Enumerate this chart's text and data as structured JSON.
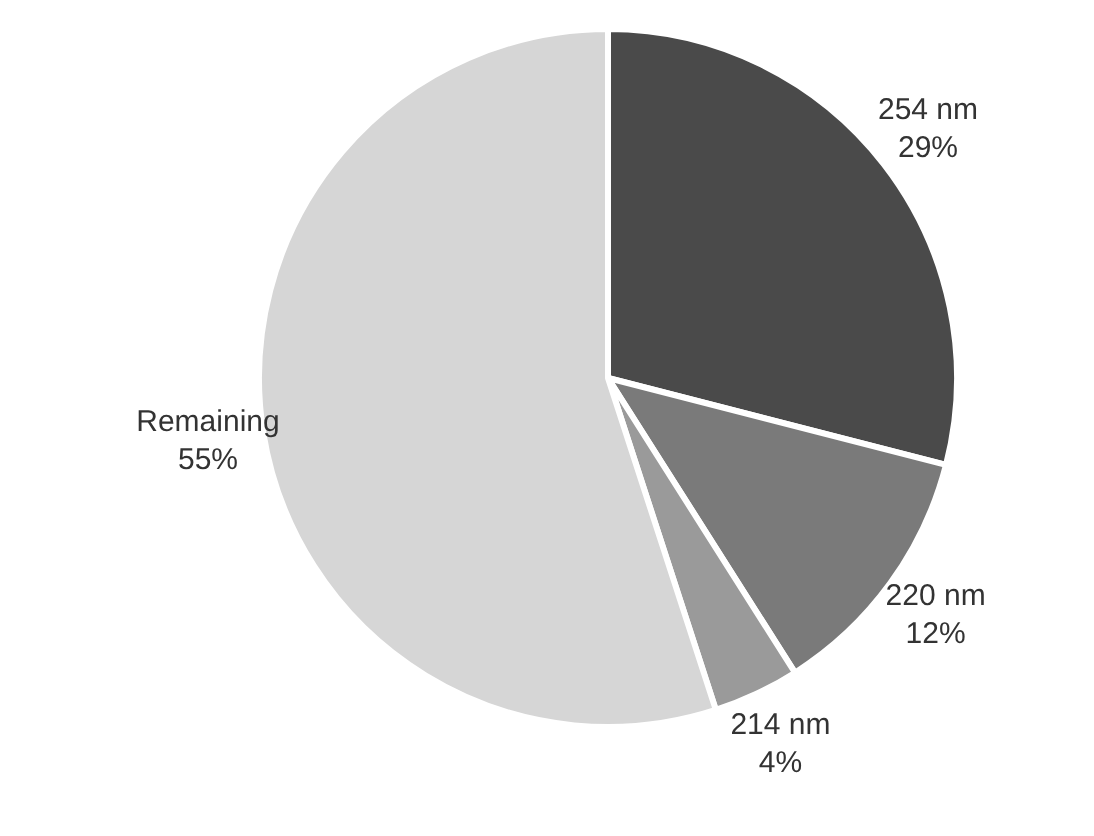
{
  "chart_data": {
    "type": "pie",
    "categories": [
      "254 nm",
      "220 nm",
      "214 nm",
      "Remaining"
    ],
    "values": [
      29,
      12,
      4,
      55
    ],
    "colors": [
      "#4a4a4a",
      "#7a7a7a",
      "#9a9a9a",
      "#d6d6d6"
    ],
    "value_labels": [
      "29%",
      "12%",
      "4%",
      "55%"
    ],
    "legend": false
  }
}
